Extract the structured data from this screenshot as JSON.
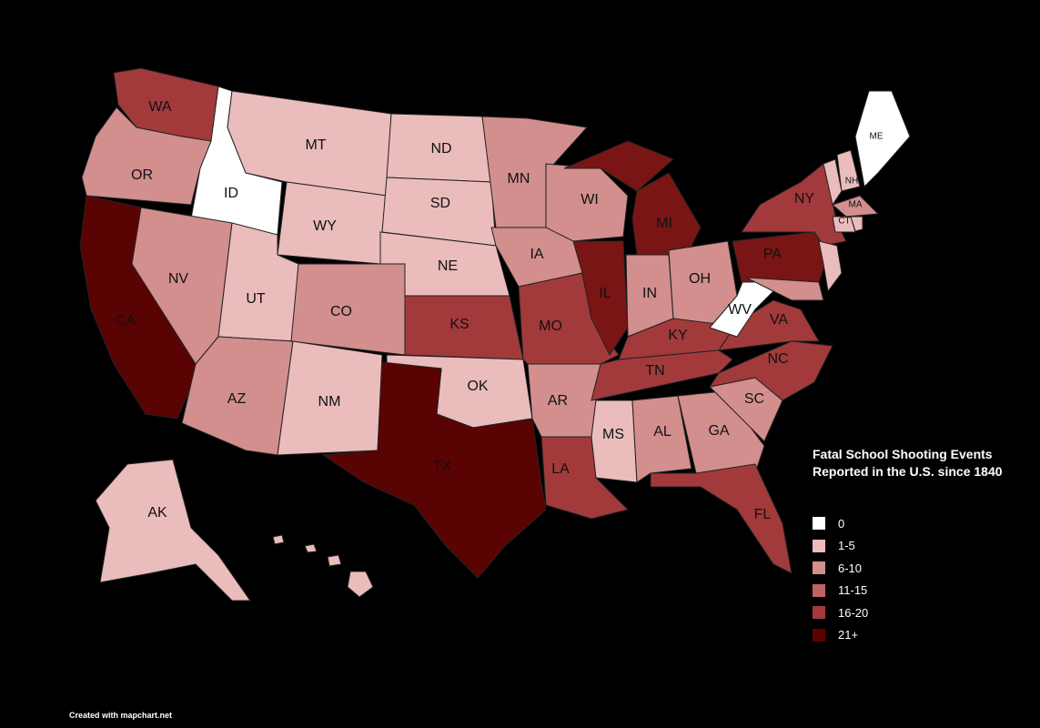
{
  "map": {
    "title": "Fatal School Shooting Events Reported in the U.S. since 1840",
    "footer": "Created with mapchart.net",
    "legend": [
      {
        "label": "0",
        "color": "#ffffff"
      },
      {
        "label": "1-5",
        "color": "#ebbcbc"
      },
      {
        "label": "6-10",
        "color": "#d38e8e"
      },
      {
        "label": "11-15",
        "color": "#bf6262"
      },
      {
        "label": "16-20",
        "color": "#a23a3c"
      },
      {
        "label": "21+",
        "color": "#5a0303"
      }
    ],
    "states": [
      {
        "label": "WA",
        "color": "#a23a3c"
      },
      {
        "label": "OR",
        "color": "#d38e8e"
      },
      {
        "label": "CA",
        "color": "#5a0303"
      },
      {
        "label": "ID",
        "color": "#ffffff"
      },
      {
        "label": "NV",
        "color": "#d38e8e"
      },
      {
        "label": "MT",
        "color": "#ebbcbc"
      },
      {
        "label": "WY",
        "color": "#ebbcbc"
      },
      {
        "label": "UT",
        "color": "#ebbcbc"
      },
      {
        "label": "AZ",
        "color": "#d38e8e"
      },
      {
        "label": "CO",
        "color": "#d38e8e"
      },
      {
        "label": "NM",
        "color": "#ebbcbc"
      },
      {
        "label": "ND",
        "color": "#ebbcbc"
      },
      {
        "label": "SD",
        "color": "#ebbcbc"
      },
      {
        "label": "NE",
        "color": "#ebbcbc"
      },
      {
        "label": "KS",
        "color": "#a23a3c"
      },
      {
        "label": "OK",
        "color": "#ebbcbc"
      },
      {
        "label": "TX",
        "color": "#5a0303"
      },
      {
        "label": "MN",
        "color": "#d38e8e"
      },
      {
        "label": "IA",
        "color": "#d38e8e"
      },
      {
        "label": "MO",
        "color": "#a23a3c"
      },
      {
        "label": "AR",
        "color": "#d38e8e"
      },
      {
        "label": "LA",
        "color": "#a23a3c"
      },
      {
        "label": "WI",
        "color": "#d38e8e"
      },
      {
        "label": "IL",
        "color": "#7a1515"
      },
      {
        "label": "MI",
        "color": "#7a1515"
      },
      {
        "label": null,
        "color": "#7a1515"
      },
      {
        "label": "IN",
        "color": "#d38e8e"
      },
      {
        "label": "OH",
        "color": "#d38e8e"
      },
      {
        "label": "KY",
        "color": "#a23a3c"
      },
      {
        "label": "TN",
        "color": "#a23a3c"
      },
      {
        "label": "MS",
        "color": "#ebbcbc"
      },
      {
        "label": "AL",
        "color": "#d38e8e"
      },
      {
        "label": "GA",
        "color": "#d38e8e"
      },
      {
        "label": "FL",
        "color": "#a23a3c"
      },
      {
        "label": "SC",
        "color": "#d38e8e"
      },
      {
        "label": "NC",
        "color": "#a23a3c"
      },
      {
        "label": "VA",
        "color": "#a23a3c"
      },
      {
        "label": "WV",
        "color": "#ffffff"
      },
      {
        "label": "PA",
        "color": "#7a1515"
      },
      {
        "label": "NY",
        "color": "#a23a3c"
      },
      {
        "label": null,
        "color": "#ebbcbc"
      },
      {
        "label": null,
        "color": "#d38e8e"
      },
      {
        "label": null,
        "color": "#ebbcbc"
      },
      {
        "label": "NH",
        "color": "#ebbcbc"
      },
      {
        "label": "ME",
        "color": "#ffffff"
      },
      {
        "label": "MA",
        "color": "#d38e8e"
      },
      {
        "label": "CT",
        "color": "#ebbcbc"
      },
      {
        "label": null,
        "color": "#ebbcbc"
      },
      {
        "label": "AK",
        "color": "#ebbcbc"
      },
      {
        "label": null,
        "color": "#ebbcbc"
      }
    ]
  }
}
